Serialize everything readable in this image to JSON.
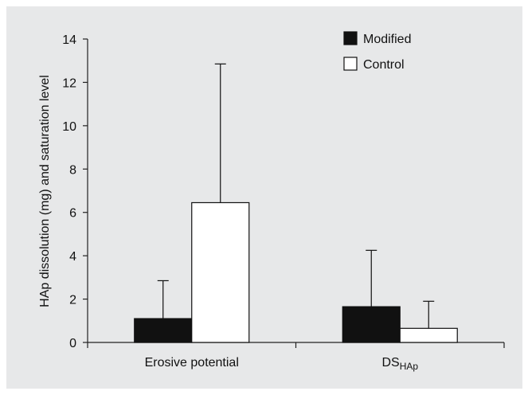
{
  "chart_data": {
    "type": "bar",
    "title": "",
    "xlabel": "",
    "ylabel": "HAp dissolution (mg) and saturation level",
    "ylim": [
      0,
      14
    ],
    "yticks": [
      0,
      2,
      4,
      6,
      8,
      10,
      12,
      14
    ],
    "categories": [
      {
        "main": "Erosive potential",
        "sub": ""
      },
      {
        "main": "DS",
        "sub": "HAp"
      }
    ],
    "series": [
      {
        "name": "Modified",
        "values": [
          1.1,
          1.65
        ],
        "errors": [
          1.75,
          2.6
        ],
        "color": "#111111"
      },
      {
        "name": "Control",
        "values": [
          6.45,
          0.65
        ],
        "errors": [
          6.4,
          1.25
        ],
        "color": "#ffffff"
      }
    ],
    "legend_position": "top-right",
    "grid": false
  }
}
